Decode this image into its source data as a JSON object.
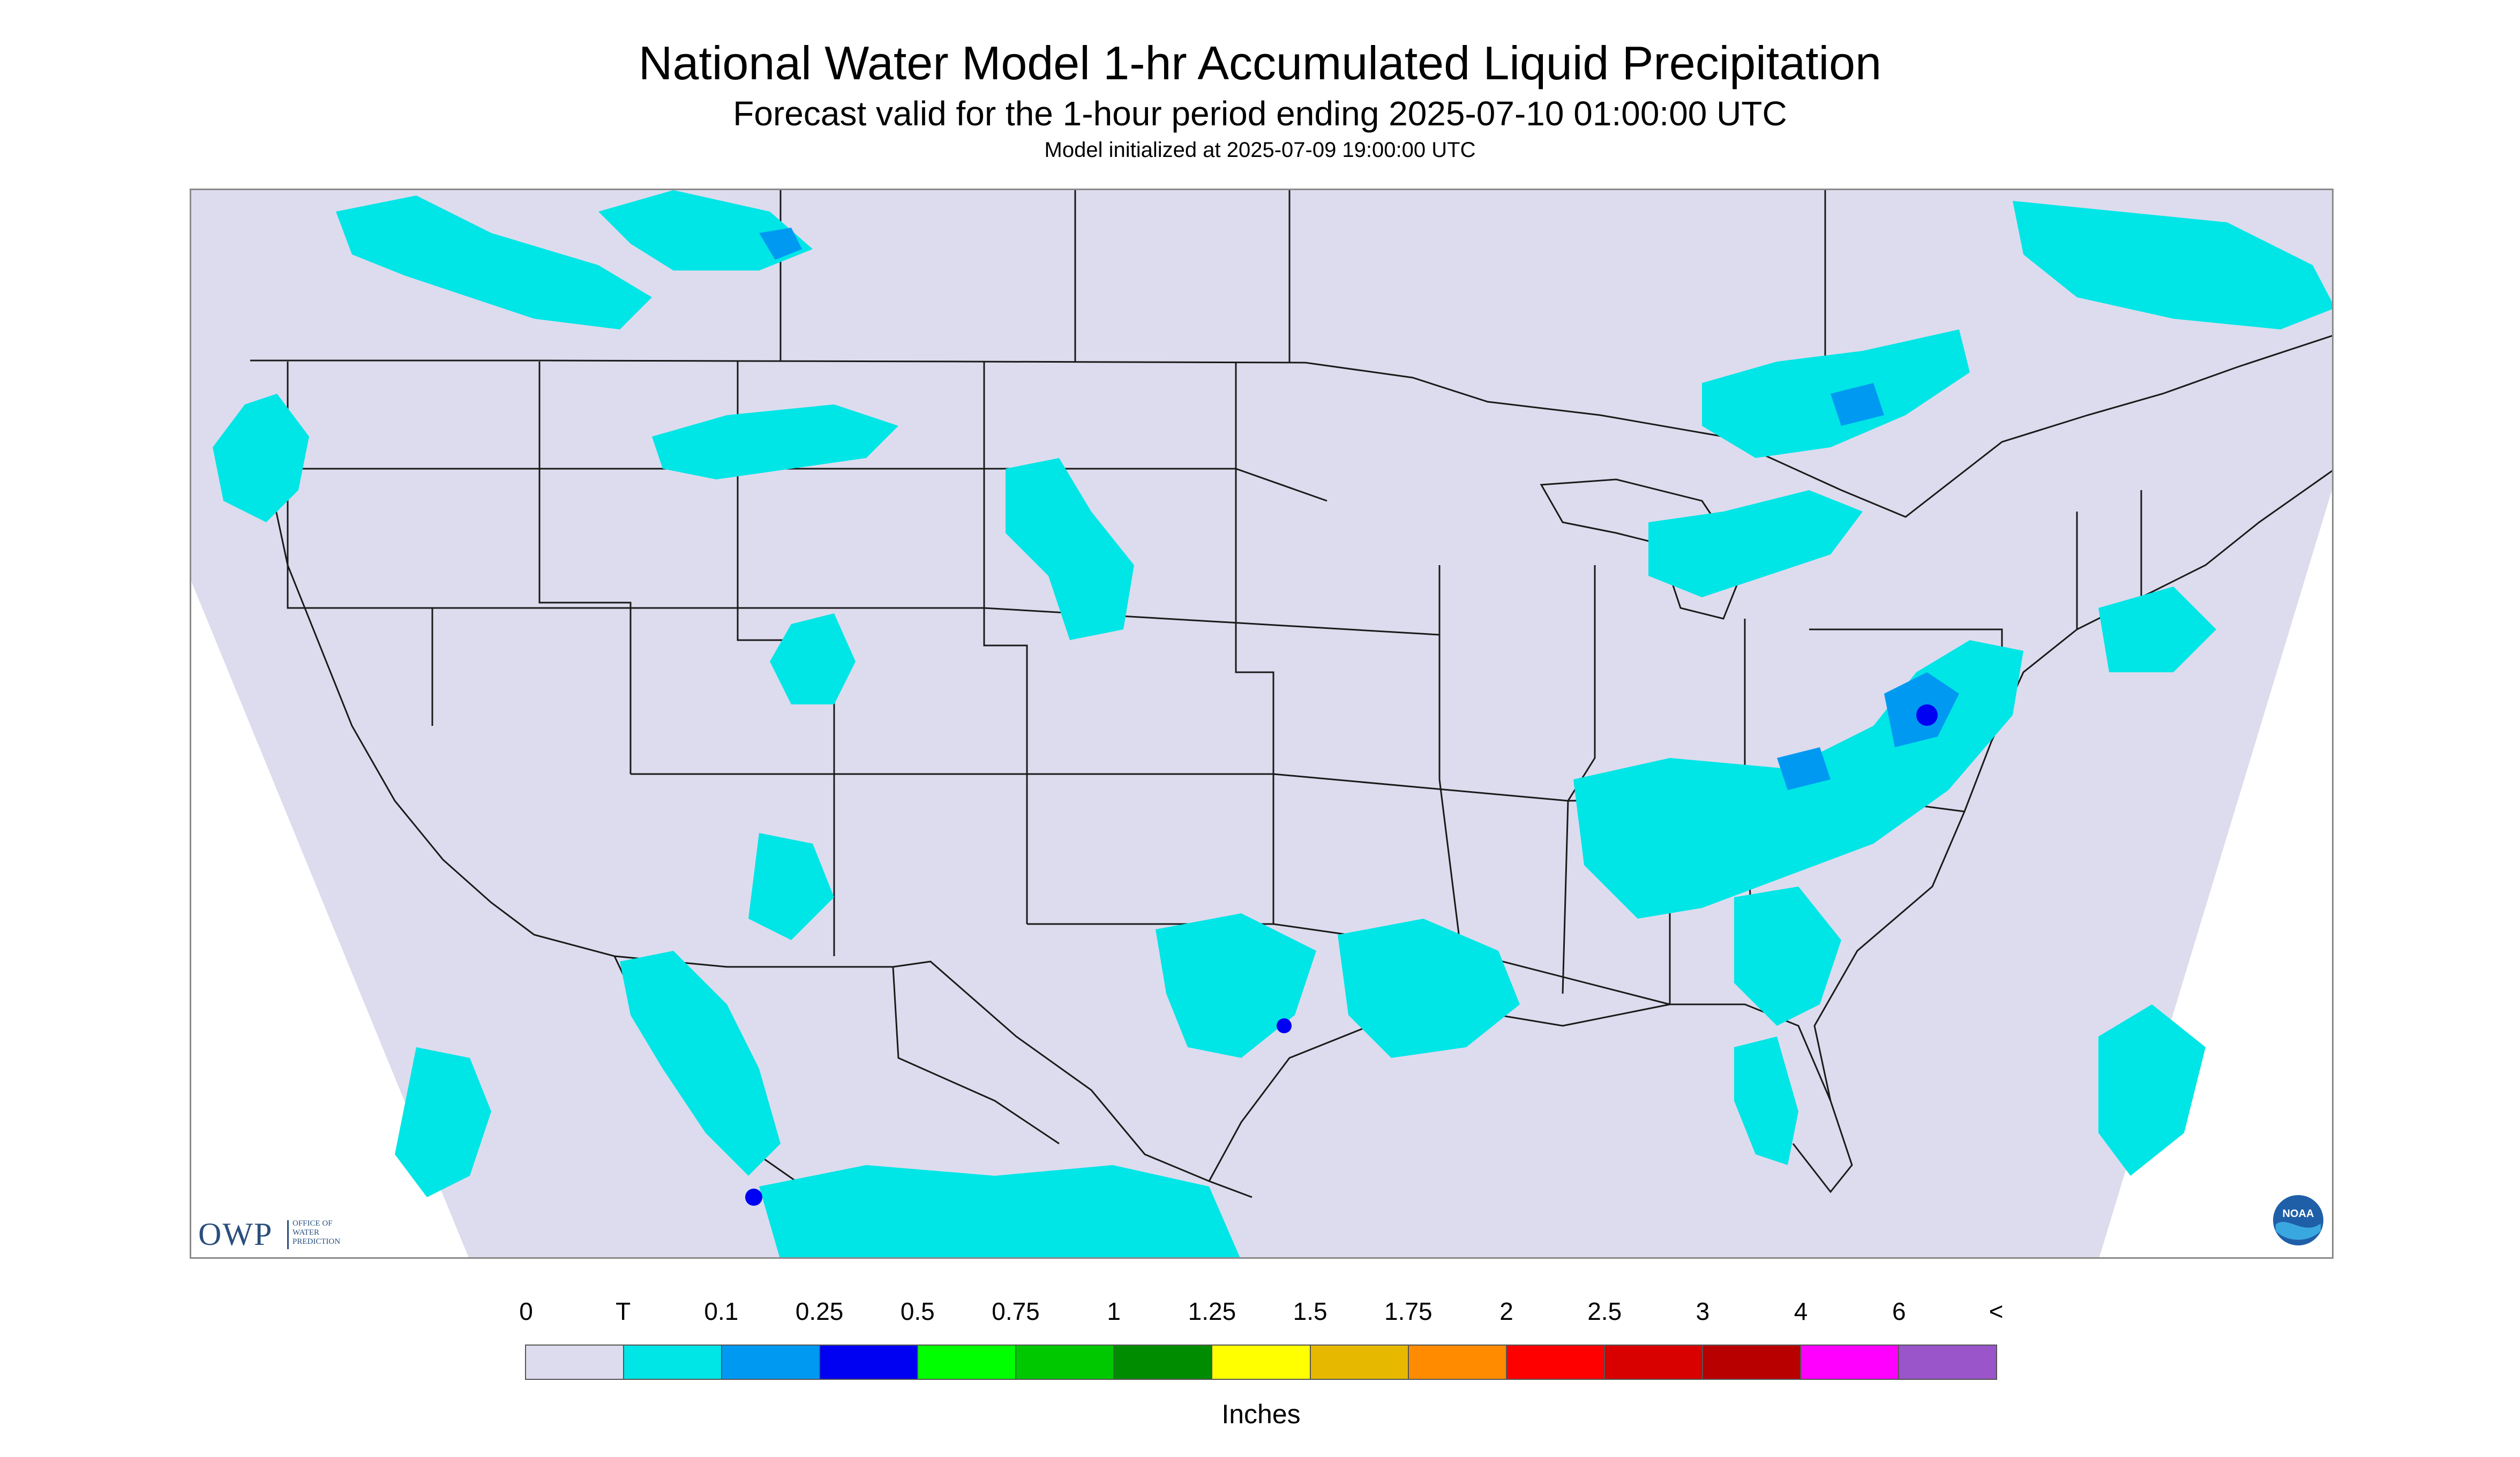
{
  "header": {
    "title": "National Water Model 1-hr Accumulated Liquid Precipitation",
    "subtitle": "Forecast valid for the 1-hour period ending 2025-07-10 01:00:00 UTC",
    "init": "Model initialized at 2025-07-09 19:00:00 UTC"
  },
  "logos": {
    "owp_mark": "OWP",
    "owp_sub_lines": [
      "OFFICE OF",
      "WATER",
      "PREDICTION"
    ],
    "noaa_text": "NOAA"
  },
  "legend": {
    "labels": [
      "0",
      "T",
      "0.1",
      "0.25",
      "0.5",
      "0.75",
      "1",
      "1.25",
      "1.5",
      "1.75",
      "2",
      "2.5",
      "3",
      "4",
      "6",
      "<"
    ],
    "colors": [
      "#dcdcee",
      "#00e5e5",
      "#0099f2",
      "#0000f2",
      "#00ff00",
      "#00c800",
      "#008c00",
      "#ffff00",
      "#e6b800",
      "#ff8c00",
      "#ff0000",
      "#d90000",
      "#b80000",
      "#ff00ff",
      "#9955c9"
    ],
    "units": "Inches"
  },
  "map_style": {
    "domain_fill": "#dcdcee",
    "outside_fill": "#ffffff",
    "boundary_color": "#000000",
    "light_precip": "#00e5e5",
    "moderate_precip": "#0099f2",
    "heavy_precip": "#0000f2"
  }
}
